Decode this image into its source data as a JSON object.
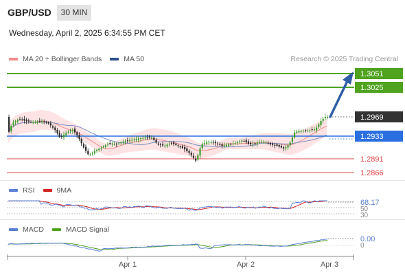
{
  "header": {
    "symbol": "GBP/USD",
    "timeframe": "30 MIN",
    "datetime": "Wednesday, April 2, 2025 6:34:55 PM CET"
  },
  "main_legend": {
    "items": [
      {
        "label": "MA 20 + Bollinger Bands",
        "color": "#f08a8a"
      },
      {
        "label": "MA 50",
        "color": "#2b4f8c"
      }
    ],
    "credit": "Research © 2025 Trading Central"
  },
  "levels": [
    {
      "label": "1.3051",
      "type": "resistance",
      "color": "#4fa31f"
    },
    {
      "label": "1.3025",
      "type": "resistance",
      "color": "#4fa31f"
    },
    {
      "label": "1.2969",
      "type": "last-price",
      "color": "#333333"
    },
    {
      "label": "1.2933",
      "type": "pivot",
      "color": "#2a6fe0"
    },
    {
      "label": "1.2891",
      "type": "support",
      "color": "#e04848"
    },
    {
      "label": "1.2866",
      "type": "support",
      "color": "#e04848"
    }
  ],
  "rsi_legend": {
    "items": [
      {
        "label": "RSI",
        "color": "#5b7fd6"
      },
      {
        "label": "9MA",
        "color": "#d42020"
      }
    ]
  },
  "rsi_labels": {
    "value": "68.17",
    "mid": "50",
    "low": "30"
  },
  "macd_legend": {
    "items": [
      {
        "label": "MACD",
        "color": "#5b7fd6"
      },
      {
        "label": "MACD Signal",
        "color": "#4fa31f"
      }
    ]
  },
  "macd_labels": {
    "value": "0.00",
    "zero": "0"
  },
  "x_axis": {
    "ticks": [
      "Apr 1",
      "Apr 2",
      "Apr 3"
    ]
  }
}
